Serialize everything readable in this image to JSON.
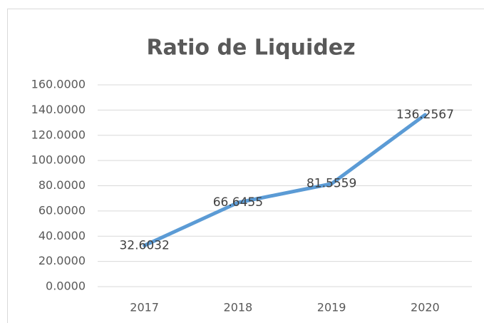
{
  "chart_data": {
    "type": "line",
    "title": "Ratio de Liquidez",
    "categories": [
      "2017",
      "2018",
      "2019",
      "2020"
    ],
    "series": [
      {
        "name": "Ratio de Liquidez",
        "color": "#5b9bd5",
        "values": [
          32.6032,
          66.6455,
          81.5559,
          136.2567
        ]
      }
    ],
    "ylim": [
      0,
      160
    ],
    "yticks": [
      {
        "value": 0,
        "label": "0.0000"
      },
      {
        "value": 20,
        "label": "20.0000"
      },
      {
        "value": 40,
        "label": "40.0000"
      },
      {
        "value": 60,
        "label": "60.0000"
      },
      {
        "value": 80,
        "label": "80.0000"
      },
      {
        "value": 100,
        "label": "100.0000"
      },
      {
        "value": 120,
        "label": "120.0000"
      },
      {
        "value": 140,
        "label": "140.0000"
      },
      {
        "value": 160,
        "label": "160.0000"
      }
    ],
    "grid": true,
    "data_labels": true
  }
}
